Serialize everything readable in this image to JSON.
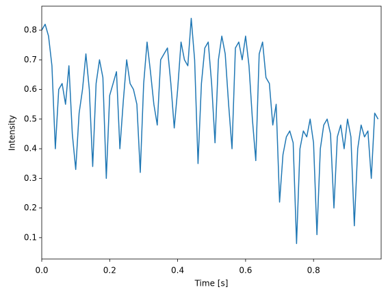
{
  "chart_data": {
    "type": "line",
    "xlabel": "Time [s]",
    "ylabel": "Intensity",
    "color": "#1f77b4",
    "x": [
      0,
      0.01,
      0.02,
      0.03,
      0.04,
      0.05,
      0.06,
      0.07,
      0.08,
      0.09,
      0.1,
      0.11,
      0.12,
      0.13,
      0.14,
      0.15,
      0.16,
      0.17,
      0.18,
      0.19,
      0.2,
      0.21,
      0.22,
      0.23,
      0.24,
      0.25,
      0.26,
      0.27,
      0.28,
      0.29,
      0.3,
      0.31,
      0.32,
      0.33,
      0.34,
      0.35,
      0.36,
      0.37,
      0.38,
      0.39,
      0.4,
      0.41,
      0.42,
      0.43,
      0.44,
      0.45,
      0.46,
      0.47,
      0.48,
      0.49,
      0.5,
      0.51,
      0.52,
      0.53,
      0.54,
      0.55,
      0.56,
      0.57,
      0.58,
      0.59,
      0.6,
      0.61,
      0.62,
      0.63,
      0.64,
      0.65,
      0.66,
      0.67,
      0.68,
      0.69,
      0.7,
      0.71,
      0.72,
      0.73,
      0.74,
      0.75,
      0.76,
      0.77,
      0.78,
      0.79,
      0.8,
      0.81,
      0.82,
      0.83,
      0.84,
      0.85,
      0.86,
      0.87,
      0.88,
      0.89,
      0.9,
      0.91,
      0.92,
      0.93,
      0.94,
      0.95,
      0.96,
      0.97,
      0.98,
      0.99
    ],
    "values": [
      0.8,
      0.82,
      0.78,
      0.68,
      0.4,
      0.6,
      0.62,
      0.55,
      0.68,
      0.45,
      0.33,
      0.52,
      0.6,
      0.72,
      0.6,
      0.34,
      0.62,
      0.7,
      0.64,
      0.3,
      0.58,
      0.62,
      0.66,
      0.4,
      0.56,
      0.7,
      0.62,
      0.6,
      0.55,
      0.32,
      0.62,
      0.76,
      0.66,
      0.55,
      0.48,
      0.7,
      0.72,
      0.74,
      0.62,
      0.47,
      0.6,
      0.76,
      0.7,
      0.68,
      0.84,
      0.7,
      0.35,
      0.62,
      0.74,
      0.76,
      0.62,
      0.42,
      0.7,
      0.78,
      0.72,
      0.55,
      0.4,
      0.74,
      0.76,
      0.7,
      0.78,
      0.68,
      0.5,
      0.36,
      0.72,
      0.76,
      0.64,
      0.62,
      0.48,
      0.55,
      0.22,
      0.38,
      0.44,
      0.46,
      0.42,
      0.08,
      0.4,
      0.46,
      0.44,
      0.5,
      0.42,
      0.11,
      0.4,
      0.48,
      0.5,
      0.45,
      0.2,
      0.44,
      0.48,
      0.4,
      0.5,
      0.44,
      0.14,
      0.4,
      0.48,
      0.44,
      0.46,
      0.3,
      0.52,
      0.5
    ],
    "xlim": [
      0,
      0.999
    ],
    "ylim": [
      0.028,
      0.881
    ],
    "xticks": [
      {
        "value": 0,
        "label": "0.0"
      },
      0.2,
      0.4,
      0.6,
      0.8
    ],
    "yticks": [
      0.1,
      0.2,
      0.3,
      0.4,
      0.5,
      0.6,
      0.7,
      0.8
    ]
  }
}
